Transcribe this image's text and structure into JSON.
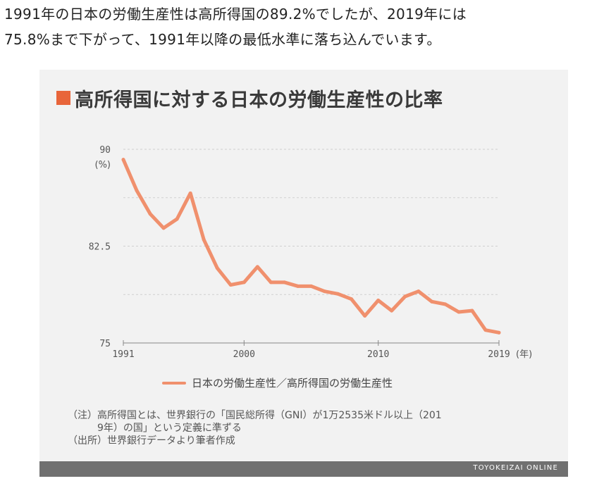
{
  "lead": {
    "line1": "1991年の日本の労働生産性は高所得国の89.2%でしたが、2019年には",
    "line2": "75.8%まで下がって、1991年以降の最低水準に落ち込んでいます。"
  },
  "chart_data": {
    "type": "line",
    "title": "高所得国に対する日本の労働生産性の比率",
    "ylabel": "(%)",
    "xlabel": "(年)",
    "ylim": [
      75,
      90
    ],
    "yticks": [
      90,
      82.5,
      75
    ],
    "xticks": [
      1991,
      2000,
      2010,
      2019
    ],
    "grid": true,
    "legend_position": "bottom",
    "accent_color": "#f0906d",
    "series": [
      {
        "name": "日本の労働生産性／高所得国の労働生産性",
        "x": [
          1991,
          1992,
          1993,
          1994,
          1995,
          1996,
          1997,
          1998,
          1999,
          2000,
          2001,
          2002,
          2003,
          2004,
          2005,
          2006,
          2007,
          2008,
          2009,
          2010,
          2011,
          2012,
          2013,
          2014,
          2015,
          2016,
          2017,
          2018,
          2019
        ],
        "values": [
          89.2,
          86.8,
          85.0,
          83.9,
          84.6,
          86.6,
          83.0,
          80.8,
          79.5,
          79.7,
          80.9,
          79.7,
          79.7,
          79.4,
          79.4,
          79.0,
          78.8,
          78.4,
          77.1,
          78.3,
          77.5,
          78.6,
          79.0,
          78.2,
          78.0,
          77.4,
          77.5,
          76.0,
          75.8
        ]
      }
    ]
  },
  "notes": {
    "note1": "（注）高所得国とは、世界銀行の「国民総所得（GNI）が1万2535米ドル以上（201",
    "note2": "　　　9年）の国」という定義に準ずる",
    "note3": "（出所）世界銀行データより筆者作成"
  },
  "footer": {
    "brand": "TOYOKEIZAI ONLINE"
  }
}
